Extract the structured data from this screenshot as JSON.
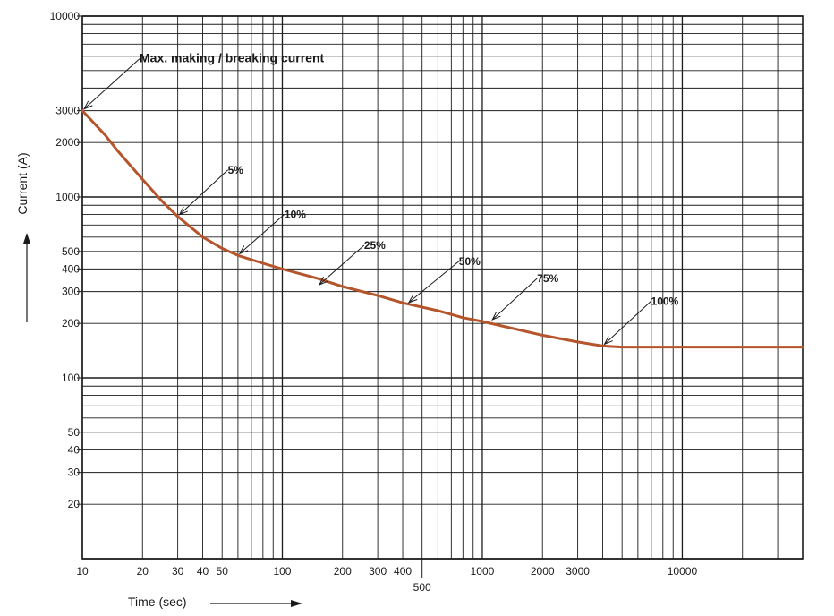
{
  "chart_data": {
    "type": "line",
    "title": "",
    "xlabel": "Time (sec)",
    "ylabel": "Current (A)",
    "x_scale": "log",
    "y_scale": "log",
    "xlim": [
      10,
      40000
    ],
    "ylim": [
      10,
      10000
    ],
    "grid": true,
    "x_ticks": [
      {
        "value": 10,
        "label": "10"
      },
      {
        "value": 20,
        "label": "20"
      },
      {
        "value": 30,
        "label": "30"
      },
      {
        "value": 40,
        "label": "40"
      },
      {
        "value": 50,
        "label": "50"
      },
      {
        "value": 100,
        "label": "100"
      },
      {
        "value": 200,
        "label": "200"
      },
      {
        "value": 300,
        "label": "300"
      },
      {
        "value": 400,
        "label": "400"
      },
      {
        "value": 500,
        "label": "500"
      },
      {
        "value": 1000,
        "label": "1000"
      },
      {
        "value": 2000,
        "label": "2000"
      },
      {
        "value": 3000,
        "label": "3000"
      },
      {
        "value": 10000,
        "label": "10000"
      }
    ],
    "y_ticks": [
      {
        "value": 10000,
        "label": "10000"
      },
      {
        "value": 3000,
        "label": "3000"
      },
      {
        "value": 2000,
        "label": "2000"
      },
      {
        "value": 1000,
        "label": "1000"
      },
      {
        "value": 500,
        "label": "500"
      },
      {
        "value": 400,
        "label": "400"
      },
      {
        "value": 300,
        "label": "300"
      },
      {
        "value": 200,
        "label": "200"
      },
      {
        "value": 100,
        "label": "100"
      },
      {
        "value": 50,
        "label": "50"
      },
      {
        "value": 40,
        "label": "40"
      },
      {
        "value": 30,
        "label": "30"
      },
      {
        "value": 20,
        "label": "20"
      }
    ],
    "series": [
      {
        "color": "#b5552c",
        "points": [
          [
            10,
            3000
          ],
          [
            13,
            2200
          ],
          [
            15,
            1800
          ],
          [
            20,
            1250
          ],
          [
            25,
            950
          ],
          [
            30,
            780
          ],
          [
            40,
            600
          ],
          [
            50,
            520
          ],
          [
            60,
            475
          ],
          [
            80,
            430
          ],
          [
            100,
            400
          ],
          [
            150,
            355
          ],
          [
            200,
            320
          ],
          [
            300,
            285
          ],
          [
            400,
            260
          ],
          [
            600,
            235
          ],
          [
            800,
            215
          ],
          [
            1000,
            205
          ],
          [
            1500,
            185
          ],
          [
            2000,
            172
          ],
          [
            3000,
            158
          ],
          [
            4000,
            150
          ],
          [
            5000,
            148
          ],
          [
            40000,
            148
          ]
        ]
      }
    ],
    "annotations": [
      {
        "text": "Max. making / breaking current",
        "x": 10,
        "y": 3000,
        "bold": true,
        "big": true
      },
      {
        "text": "5%",
        "x": 30,
        "y": 780
      },
      {
        "text": "10%",
        "x": 60,
        "y": 475
      },
      {
        "text": "25%",
        "x": 150,
        "y": 320
      },
      {
        "text": "50%",
        "x": 420,
        "y": 255
      },
      {
        "text": "75%",
        "x": 1100,
        "y": 205
      },
      {
        "text": "100%",
        "x": 4000,
        "y": 150
      }
    ]
  }
}
